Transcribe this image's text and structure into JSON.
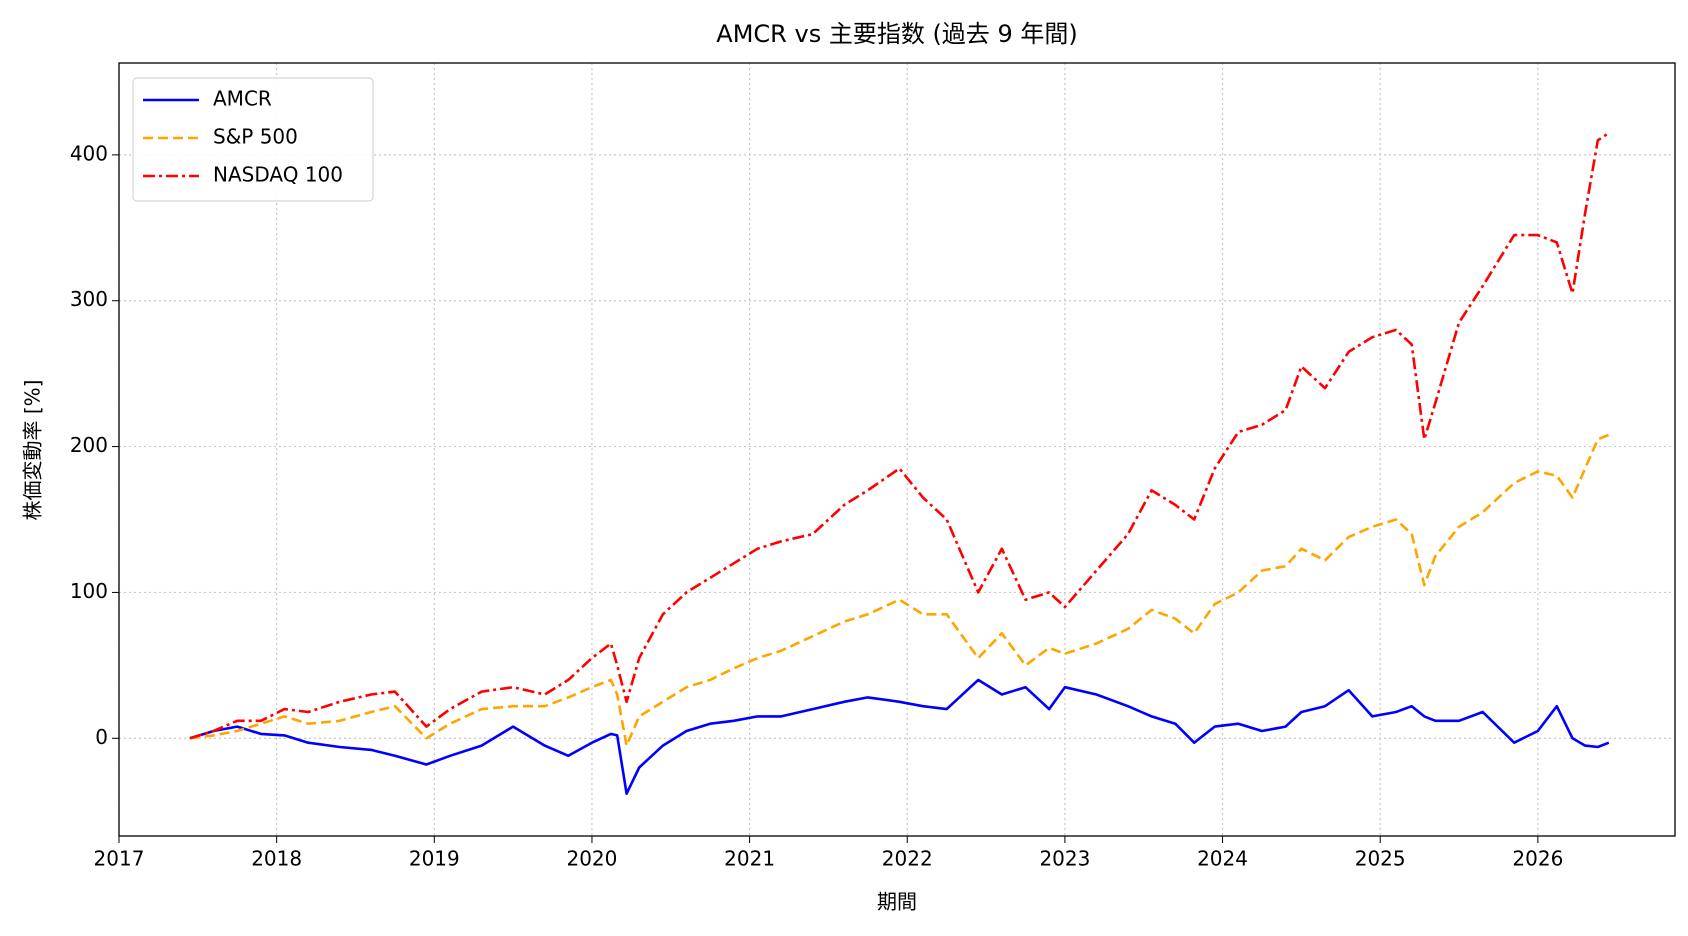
{
  "chart_data": {
    "type": "line",
    "title": "AMCR vs 主要指数 (過去 9 年間)",
    "xlabel": "期間",
    "ylabel": "株価変動率 [%]",
    "x": [
      2017.45,
      2017.6,
      2017.75,
      2017.9,
      2018.05,
      2018.2,
      2018.4,
      2018.6,
      2018.75,
      2018.95,
      2019.1,
      2019.3,
      2019.5,
      2019.7,
      2019.85,
      2020.0,
      2020.12,
      2020.16,
      2020.22,
      2020.3,
      2020.45,
      2020.6,
      2020.75,
      2020.9,
      2021.05,
      2021.2,
      2021.4,
      2021.6,
      2021.75,
      2021.95,
      2022.1,
      2022.25,
      2022.45,
      2022.6,
      2022.75,
      2022.9,
      2023.0,
      2023.2,
      2023.4,
      2023.55,
      2023.7,
      2023.82,
      2023.95,
      2024.1,
      2024.25,
      2024.4,
      2024.5,
      2024.65,
      2024.8,
      2024.95,
      2025.1,
      2025.2,
      2025.28,
      2025.35,
      2025.5,
      2025.65,
      2025.85,
      2026.0,
      2026.12,
      2026.22,
      2026.3,
      2026.38,
      2026.45
    ],
    "series": [
      {
        "name": "AMCR",
        "color": "#0000ff",
        "linestyle": "solid",
        "values": [
          0,
          5,
          8,
          3,
          2,
          -3,
          -6,
          -8,
          -12,
          -18,
          -12,
          -5,
          8,
          -5,
          -12,
          -3,
          3,
          2,
          -38,
          -20,
          -5,
          5,
          10,
          12,
          15,
          15,
          20,
          25,
          28,
          25,
          22,
          20,
          40,
          30,
          35,
          20,
          35,
          30,
          22,
          15,
          10,
          -3,
          8,
          10,
          5,
          8,
          18,
          22,
          33,
          15,
          18,
          22,
          15,
          12,
          12,
          18,
          -3,
          5,
          22,
          0,
          -5,
          -6,
          -3
        ]
      },
      {
        "name": "S&P 500",
        "color": "#ffa500",
        "linestyle": "dashed",
        "values": [
          0,
          2,
          5,
          10,
          15,
          10,
          12,
          18,
          22,
          0,
          10,
          20,
          22,
          22,
          28,
          35,
          40,
          30,
          -5,
          15,
          25,
          35,
          40,
          48,
          55,
          60,
          70,
          80,
          85,
          95,
          85,
          85,
          55,
          72,
          50,
          62,
          58,
          65,
          75,
          88,
          82,
          72,
          92,
          100,
          115,
          118,
          130,
          122,
          138,
          145,
          150,
          140,
          105,
          125,
          145,
          155,
          175,
          183,
          180,
          165,
          185,
          205,
          208
        ]
      },
      {
        "name": "NASDAQ 100",
        "color": "#ff0000",
        "linestyle": "dashdot",
        "values": [
          0,
          5,
          12,
          12,
          20,
          18,
          25,
          30,
          32,
          8,
          20,
          32,
          35,
          30,
          40,
          55,
          65,
          50,
          25,
          55,
          85,
          100,
          110,
          120,
          130,
          135,
          140,
          160,
          170,
          185,
          165,
          150,
          100,
          130,
          95,
          100,
          90,
          115,
          140,
          170,
          160,
          150,
          185,
          210,
          215,
          225,
          255,
          240,
          265,
          275,
          280,
          270,
          205,
          230,
          285,
          310,
          345,
          345,
          340,
          305,
          360,
          410,
          415
        ]
      }
    ],
    "xlim": [
      2017,
      2026.87
    ],
    "xticks": [
      2017,
      2018,
      2019,
      2020,
      2021,
      2022,
      2023,
      2024,
      2025,
      2026
    ],
    "ylim": [
      -67,
      463
    ],
    "yticks": [
      0,
      100,
      200,
      300,
      400
    ],
    "grid": true,
    "legend": "upper left"
  }
}
